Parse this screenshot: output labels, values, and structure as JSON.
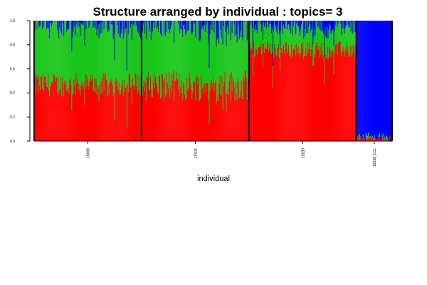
{
  "chart_data": {
    "type": "bar",
    "stacked": true,
    "title": "Structure arranged by individual : topics= 3",
    "xlabel": "individual",
    "ylabel": "",
    "ylim": [
      0,
      1
    ],
    "yticks": [
      "0.0",
      "0.2",
      "0.4",
      "0.6",
      "0.8",
      "1.0"
    ],
    "colors": [
      "#FF0000",
      "#19C619",
      "#0000FF"
    ],
    "groups": [
      {
        "label": "19098",
        "bar_count": 150,
        "red_mean": 0.47,
        "red_spread": 0.1,
        "green_mean": 0.5
      },
      {
        "label": "19101",
        "bar_count": 150,
        "red_mean": 0.46,
        "red_spread": 0.13,
        "green_mean": 0.51
      },
      {
        "label": "19239",
        "bar_count": 150,
        "red_mean": 0.76,
        "red_spread": 0.07,
        "green_mean": 0.2
      },
      {
        "label": "19239_LCL",
        "bar_count": 50,
        "red_mean": 0.02,
        "red_spread": 0.03,
        "green_mean": 0.01
      }
    ]
  }
}
